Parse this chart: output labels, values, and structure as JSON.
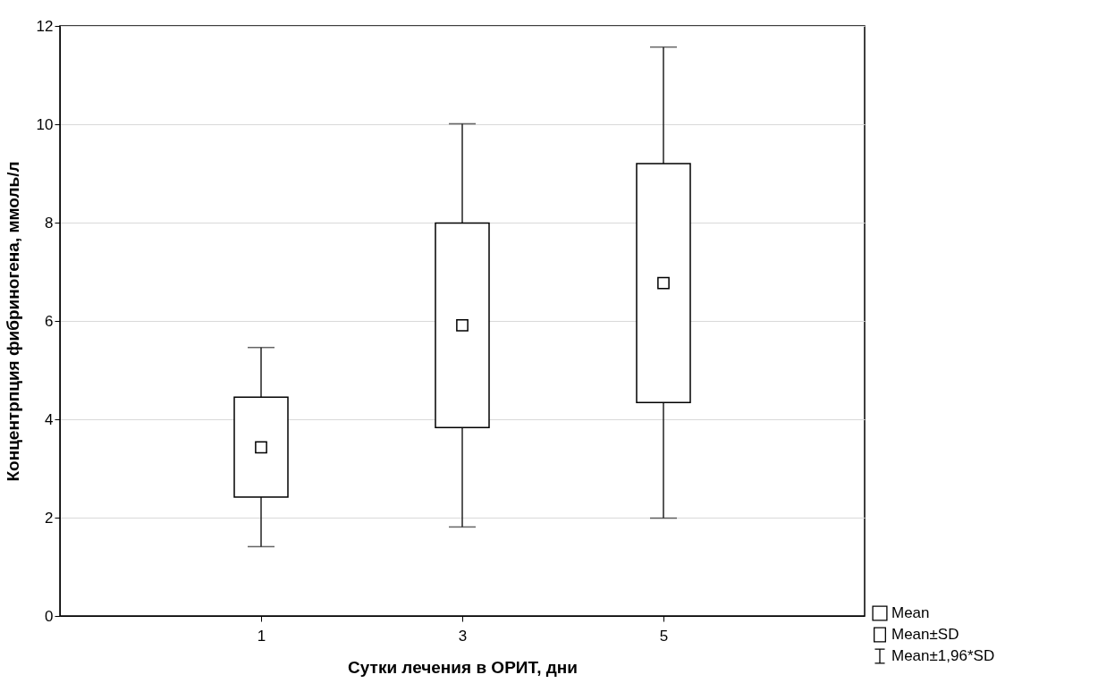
{
  "chart_data": {
    "type": "box",
    "xlabel": "Сутки лечения в ОРИТ, дни",
    "ylabel": "Концентрпция фибриногена, ммоль/л",
    "categories": [
      "1",
      "3",
      "5"
    ],
    "boxes": [
      {
        "low": 1.41,
        "q1": 2.42,
        "median": null,
        "q3": 4.45,
        "high": 5.46,
        "mean": 3.43
      },
      {
        "low": 1.81,
        "q1": 3.83,
        "median": null,
        "q3": 7.99,
        "high": 10.01,
        "mean": 5.91
      },
      {
        "low": 1.99,
        "q1": 4.34,
        "median": null,
        "q3": 9.2,
        "high": 11.57,
        "mean": 6.77
      }
    ],
    "ylim": [
      0,
      12
    ],
    "yticks": [
      0,
      2,
      4,
      6,
      8,
      10,
      12
    ],
    "grid": "y",
    "annotations": [
      "Mean",
      "Mean±SD",
      "Mean±1,96*SD"
    ]
  }
}
